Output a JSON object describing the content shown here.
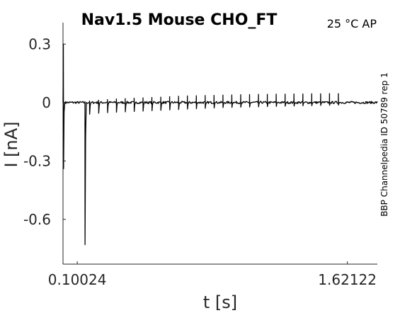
{
  "chart_data": {
    "type": "line",
    "title": "Nav1.5  Mouse  CHO_FT",
    "subtitle": "25 °C  AP",
    "side_note": "BBP Channelpedia ID 50789 rep 1",
    "xlabel": "t [s]",
    "ylabel": "I [nA]",
    "xlim": [
      0.02,
      1.79
    ],
    "ylim": [
      -0.83,
      0.41
    ],
    "x_ticks": [
      0.10024,
      1.62122
    ],
    "x_tick_labels": [
      "0.10024",
      "1.62122"
    ],
    "y_ticks": [
      0.3,
      0,
      -0.3,
      -0.6
    ],
    "y_tick_labels": [
      "0.3",
      "0",
      "-0.3",
      "-0.6"
    ],
    "grid": false,
    "box": false,
    "trace": {
      "baseline": 0.0,
      "initial_transient": {
        "x": 0.022,
        "peak_high": 0.3,
        "peak_low": -0.34
      },
      "main_spike": {
        "x": 0.143,
        "peak": -0.73
      },
      "spike_times": [
        0.169,
        0.22,
        0.27,
        0.32,
        0.37,
        0.42,
        0.47,
        0.52,
        0.57,
        0.62,
        0.67,
        0.72,
        0.77,
        0.82,
        0.87,
        0.92,
        0.97,
        1.02,
        1.07,
        1.12,
        1.17,
        1.22,
        1.27,
        1.32,
        1.37,
        1.42,
        1.47,
        1.52,
        1.57
      ],
      "spike_dips": [
        -0.06,
        -0.055,
        -0.052,
        -0.05,
        -0.048,
        -0.046,
        -0.044,
        -0.042,
        -0.04,
        -0.038,
        -0.036,
        -0.034,
        -0.032,
        -0.03,
        -0.028,
        -0.026,
        -0.025,
        -0.024,
        -0.023,
        -0.022,
        -0.021,
        -0.02,
        -0.019,
        -0.018,
        -0.017,
        -0.016,
        -0.015,
        -0.014,
        -0.013
      ],
      "spike_peaks": [
        0.008,
        0.012,
        0.015,
        0.018,
        0.02,
        0.022,
        0.024,
        0.026,
        0.028,
        0.03,
        0.032,
        0.034,
        0.035,
        0.036,
        0.037,
        0.038,
        0.039,
        0.04,
        0.041,
        0.042,
        0.042,
        0.043,
        0.043,
        0.044,
        0.044,
        0.045,
        0.045,
        0.046,
        0.046
      ],
      "noise_amplitude": 0.006,
      "end_x": 1.79
    }
  }
}
